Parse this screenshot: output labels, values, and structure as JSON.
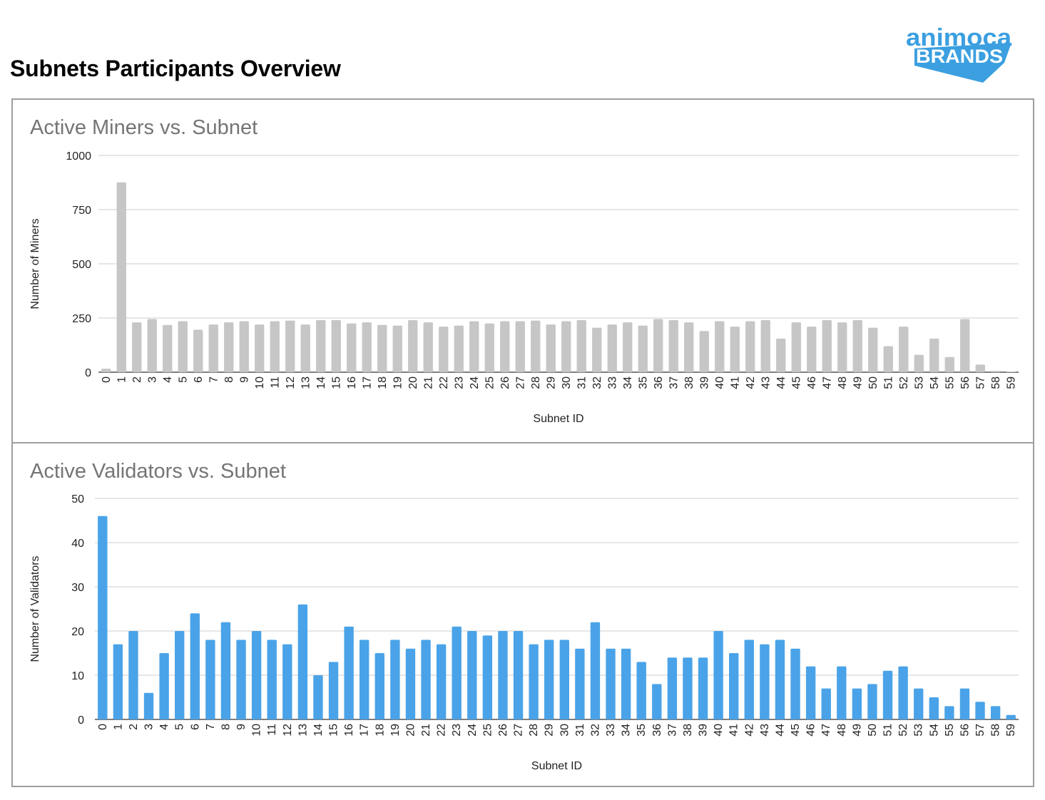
{
  "page": {
    "title": "Subnets Participants Overview"
  },
  "logo": {
    "line1": "animoca",
    "line2": "BRANDS",
    "brand_color": "#3b9fe0"
  },
  "chart_data": [
    {
      "type": "bar",
      "title": "Active Miners vs. Subnet",
      "xlabel": "Subnet ID",
      "ylabel": "Number of Miners",
      "ylim": [
        0,
        1000
      ],
      "yticks": [
        0,
        250,
        500,
        750,
        1000
      ],
      "grid": true,
      "legend": "none",
      "color": "#c6c6c6",
      "categories": [
        "0",
        "1",
        "2",
        "3",
        "4",
        "5",
        "6",
        "7",
        "8",
        "9",
        "10",
        "11",
        "12",
        "13",
        "14",
        "15",
        "16",
        "17",
        "18",
        "19",
        "20",
        "21",
        "22",
        "23",
        "24",
        "25",
        "26",
        "27",
        "28",
        "29",
        "30",
        "31",
        "32",
        "33",
        "34",
        "35",
        "36",
        "37",
        "38",
        "39",
        "40",
        "41",
        "42",
        "43",
        "44",
        "45",
        "46",
        "47",
        "48",
        "49",
        "50",
        "51",
        "52",
        "53",
        "54",
        "55",
        "56",
        "57",
        "58",
        "59"
      ],
      "values": [
        16,
        876,
        230,
        245,
        218,
        235,
        196,
        220,
        230,
        235,
        220,
        235,
        238,
        220,
        240,
        240,
        225,
        230,
        218,
        215,
        240,
        230,
        210,
        215,
        235,
        225,
        235,
        235,
        238,
        220,
        235,
        240,
        205,
        220,
        230,
        215,
        245,
        240,
        230,
        190,
        235,
        210,
        235,
        240,
        155,
        230,
        210,
        240,
        230,
        240,
        205,
        120,
        210,
        80,
        155,
        70,
        245,
        35,
        6,
        2
      ]
    },
    {
      "type": "bar",
      "title": "Active Validators vs. Subnet",
      "xlabel": "Subnet ID",
      "ylabel": "Number of Validators",
      "ylim": [
        0,
        50
      ],
      "yticks": [
        0,
        10,
        20,
        30,
        40,
        50
      ],
      "grid": true,
      "legend": "none",
      "color": "#4aa3e8",
      "categories": [
        "0",
        "1",
        "2",
        "3",
        "4",
        "5",
        "6",
        "7",
        "8",
        "9",
        "10",
        "11",
        "12",
        "13",
        "14",
        "15",
        "16",
        "17",
        "18",
        "19",
        "20",
        "21",
        "22",
        "23",
        "24",
        "25",
        "26",
        "27",
        "28",
        "29",
        "30",
        "31",
        "32",
        "33",
        "34",
        "35",
        "36",
        "37",
        "38",
        "39",
        "40",
        "41",
        "42",
        "43",
        "44",
        "45",
        "46",
        "47",
        "48",
        "49",
        "50",
        "51",
        "52",
        "53",
        "54",
        "55",
        "56",
        "57",
        "58",
        "59"
      ],
      "values": [
        46,
        17,
        20,
        6,
        15,
        20,
        24,
        18,
        22,
        18,
        20,
        18,
        17,
        26,
        10,
        13,
        21,
        18,
        15,
        18,
        16,
        18,
        17,
        21,
        20,
        19,
        20,
        20,
        17,
        18,
        18,
        16,
        22,
        16,
        16,
        13,
        8,
        14,
        14,
        14,
        20,
        15,
        18,
        17,
        18,
        16,
        12,
        7,
        12,
        7,
        8,
        11,
        12,
        7,
        5,
        3,
        7,
        4,
        3,
        1
      ]
    }
  ]
}
